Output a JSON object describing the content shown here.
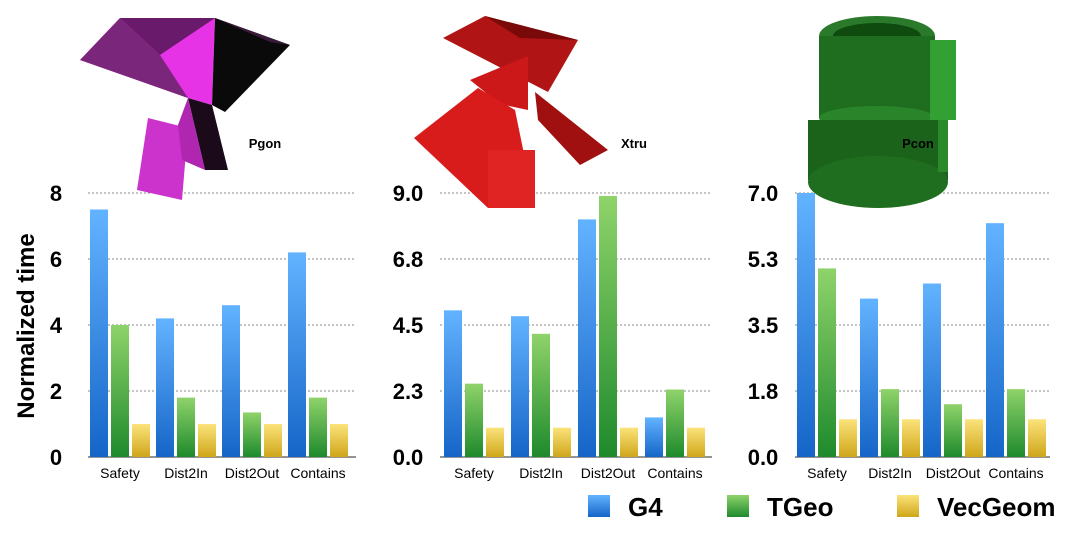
{
  "y_axis_title": "Normalized time",
  "colors": {
    "G4": "#2f86e0",
    "TGeo": "#3da641",
    "VecGeom": "#e3c22c"
  },
  "legend": [
    "G4",
    "TGeo",
    "VecGeom"
  ],
  "shape_icons": [
    "polygon-prism-3d-icon",
    "extrusion-3d-icon",
    "polycone-3d-icon"
  ],
  "chart_data": [
    {
      "type": "bar",
      "title": "Pgon",
      "categories": [
        "Safety",
        "Dist2In",
        "Dist2Out",
        "Contains"
      ],
      "ylabel": "Normalized time",
      "yticks": [
        "0",
        "2",
        "4",
        "6",
        "8"
      ],
      "ylim": [
        0,
        8
      ],
      "grid": true,
      "series": [
        {
          "name": "G4",
          "values": [
            7.5,
            4.2,
            4.6,
            6.2
          ]
        },
        {
          "name": "TGeo",
          "values": [
            4.0,
            1.8,
            1.35,
            1.8
          ]
        },
        {
          "name": "VecGeom",
          "values": [
            1.0,
            1.0,
            1.0,
            1.0
          ]
        }
      ]
    },
    {
      "type": "bar",
      "title": "Xtru",
      "categories": [
        "Safety",
        "Dist2In",
        "Dist2Out",
        "Contains"
      ],
      "ylabel": "",
      "yticks": [
        "0.0",
        "2.3",
        "4.5",
        "6.8",
        "9.0"
      ],
      "ylim": [
        0,
        9
      ],
      "grid": true,
      "series": [
        {
          "name": "G4",
          "values": [
            5.0,
            4.8,
            8.1,
            1.35
          ]
        },
        {
          "name": "TGeo",
          "values": [
            2.5,
            4.2,
            8.9,
            2.3
          ]
        },
        {
          "name": "VecGeom",
          "values": [
            1.0,
            1.0,
            1.0,
            1.0
          ]
        }
      ]
    },
    {
      "type": "bar",
      "title": "Pcon",
      "categories": [
        "Safety",
        "Dist2In",
        "Dist2Out",
        "Contains"
      ],
      "ylabel": "",
      "yticks": [
        "0.0",
        "1.8",
        "3.5",
        "5.3",
        "7.0"
      ],
      "ylim": [
        0,
        7
      ],
      "grid": true,
      "series": [
        {
          "name": "G4",
          "values": [
            7.0,
            4.2,
            4.6,
            6.2
          ]
        },
        {
          "name": "TGeo",
          "values": [
            5.0,
            1.8,
            1.4,
            1.8
          ]
        },
        {
          "name": "VecGeom",
          "values": [
            1.0,
            1.0,
            1.0,
            1.0
          ]
        }
      ]
    }
  ]
}
